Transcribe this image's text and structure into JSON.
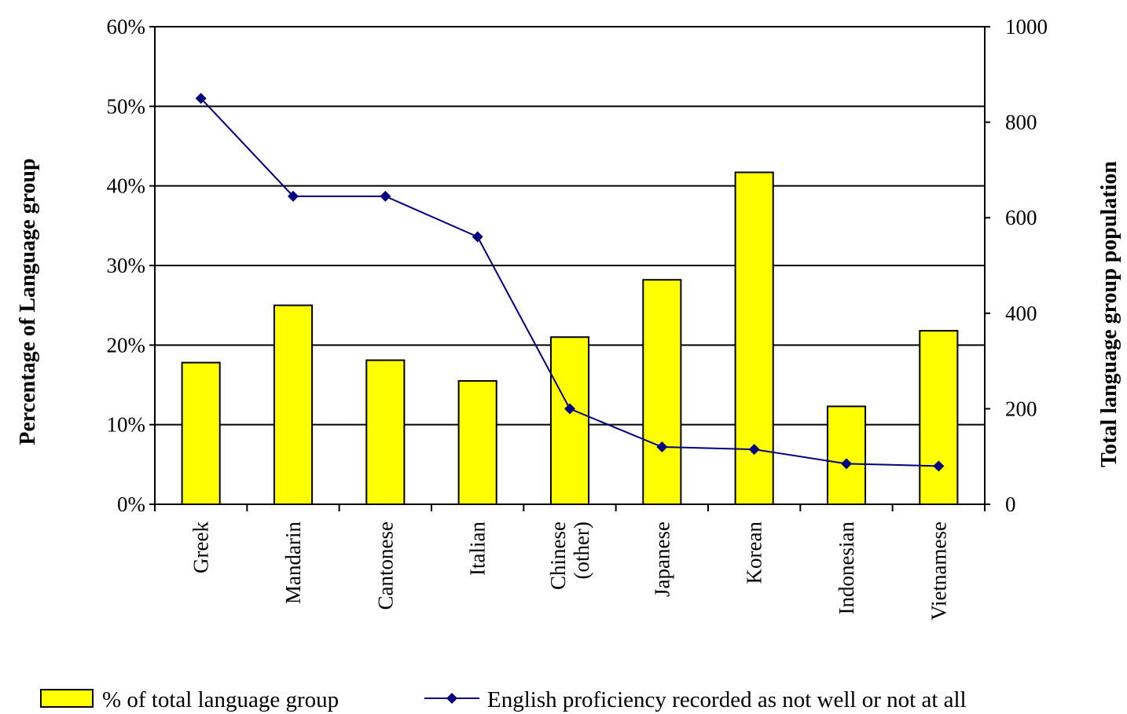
{
  "chart_data": {
    "type": "bar",
    "categories": [
      "Greek",
      "Mandarin",
      "Cantonese",
      "Italian",
      "Chinese\n(other)",
      "Japanese",
      "Korean",
      "Indonesian",
      "Vietnamese"
    ],
    "series": [
      {
        "name": "% of total language group",
        "type": "bar",
        "axis": "left",
        "values": [
          17.8,
          25.0,
          18.1,
          15.5,
          21.0,
          28.2,
          41.7,
          12.3,
          21.8
        ],
        "color": "#ffff00"
      },
      {
        "name": "English proficiency recorded as not well or not at all",
        "type": "line",
        "axis": "right",
        "values": [
          850,
          645,
          645,
          560,
          200,
          120,
          115,
          85,
          80
        ],
        "color": "#000080"
      }
    ],
    "ylabel": "Percentage of Language group",
    "y2label": "Total language group population",
    "ylim": [
      0,
      60
    ],
    "y2lim": [
      0,
      1000
    ],
    "yticks": [
      "0%",
      "10%",
      "20%",
      "30%",
      "40%",
      "50%",
      "60%"
    ],
    "y2ticks": [
      "0",
      "200",
      "400",
      "600",
      "800",
      "1000"
    ],
    "grid": true,
    "legend_position": "bottom"
  }
}
